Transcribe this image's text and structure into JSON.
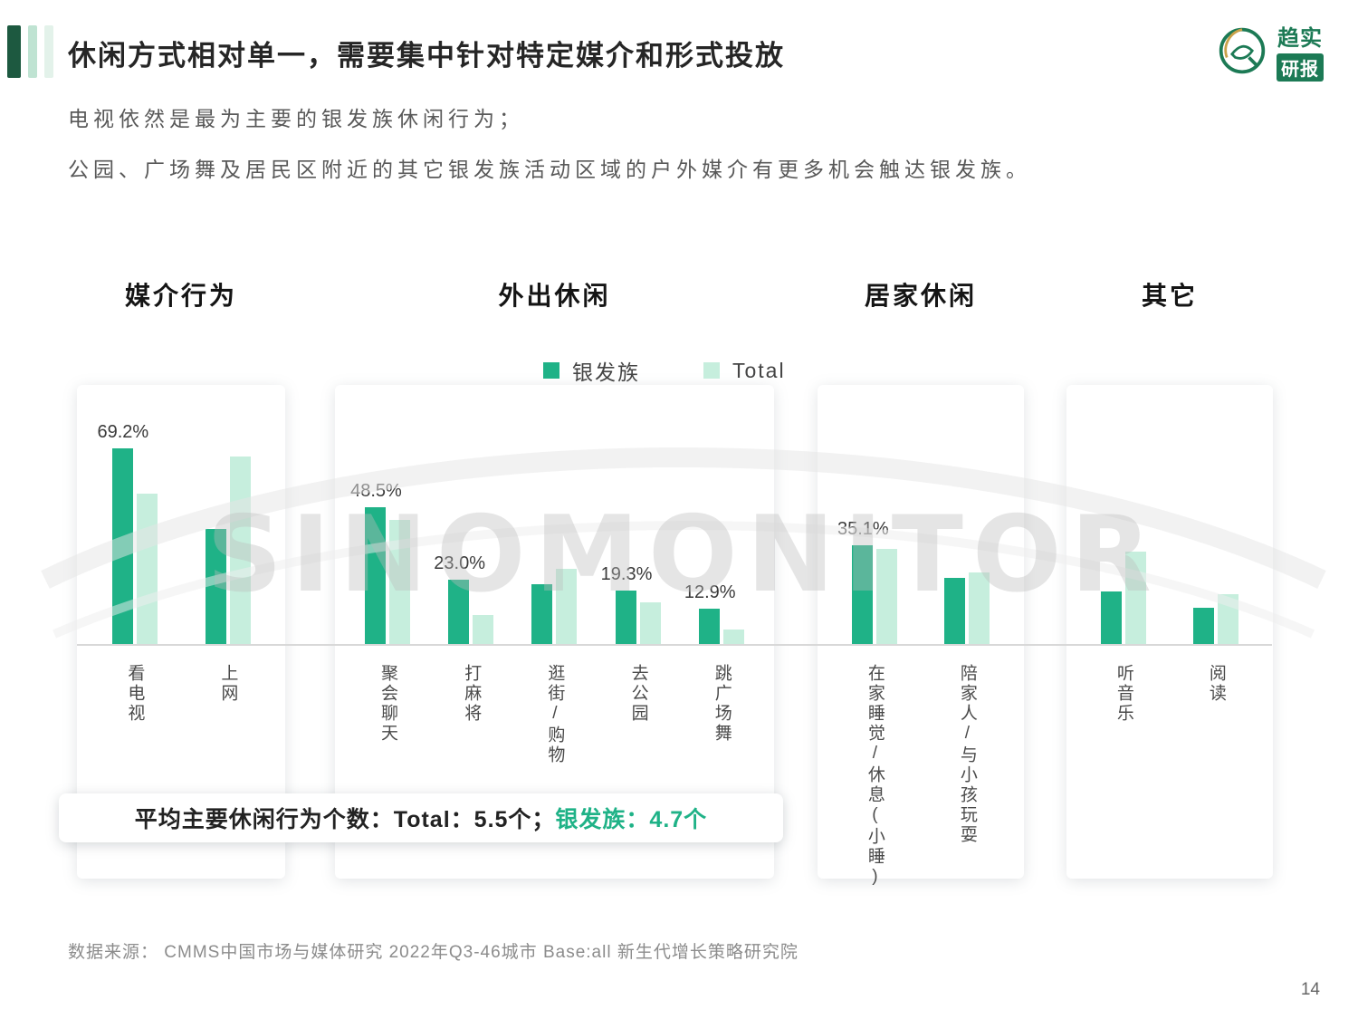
{
  "header": {
    "title": "休闲方式相对单一，需要集中针对特定媒介和形式投放",
    "subtitle1": "电视依然是最为主要的银发族休闲行为；",
    "subtitle2": "公园、广场舞及居民区附近的其它银发族活动区域的户外媒介有更多机会触达银发族。"
  },
  "logo": {
    "line1": "趋实",
    "line2": "研报"
  },
  "legend": {
    "silver": "银发族",
    "total": "Total"
  },
  "colors": {
    "silver": "#1fb287",
    "total": "#c6eedd",
    "accent_dark": "#1d5940"
  },
  "watermark": "SINOMONITOR",
  "banner": {
    "prefix": "平均主要休闲行为个数：Total：5.5个；",
    "highlight": "银发族：4.7个"
  },
  "footer": {
    "source": "数据来源： CMMS中国市场与媒体研究 2022年Q3-46城市 Base:all  新生代增长策略研究院",
    "page": "14"
  },
  "chart_data": {
    "type": "bar",
    "unit": "%",
    "legend": [
      "银发族",
      "Total"
    ],
    "ylim": [
      0,
      75
    ],
    "grid": false,
    "legend_position": "top",
    "panels": [
      {
        "title": "媒介行为",
        "groups": [
          {
            "label": "看电视",
            "silver": 69.2,
            "total": 53.5,
            "silver_label": "69.2%"
          },
          {
            "label": "上网",
            "silver": 41.0,
            "total": 66.5
          }
        ]
      },
      {
        "title": "外出休闲",
        "groups": [
          {
            "label": "聚会聊天",
            "silver": 48.5,
            "total": 44.0,
            "silver_label": "48.5%"
          },
          {
            "label": "打麻将",
            "silver": 23.0,
            "total": 10.5,
            "silver_label": "23.0%"
          },
          {
            "label": "逛街/购物",
            "silver": 21.5,
            "total": 27.0
          },
          {
            "label": "去公园",
            "silver": 19.3,
            "total": 15.0,
            "silver_label": "19.3%"
          },
          {
            "label": "跳广场舞",
            "silver": 12.9,
            "total": 5.5,
            "silver_label": "12.9%"
          }
        ]
      },
      {
        "title": "居家休闲",
        "groups": [
          {
            "label": "在家睡觉/休息(小睡)",
            "silver": 35.1,
            "total": 34.0,
            "silver_label": "35.1%"
          },
          {
            "label": "陪家人/与小孩玩耍",
            "silver": 23.5,
            "total": 25.5
          }
        ]
      },
      {
        "title": "其它",
        "groups": [
          {
            "label": "听音乐",
            "silver": 19.0,
            "total": 33.0
          },
          {
            "label": "阅读",
            "silver": 13.0,
            "total": 18.0
          }
        ]
      }
    ]
  }
}
